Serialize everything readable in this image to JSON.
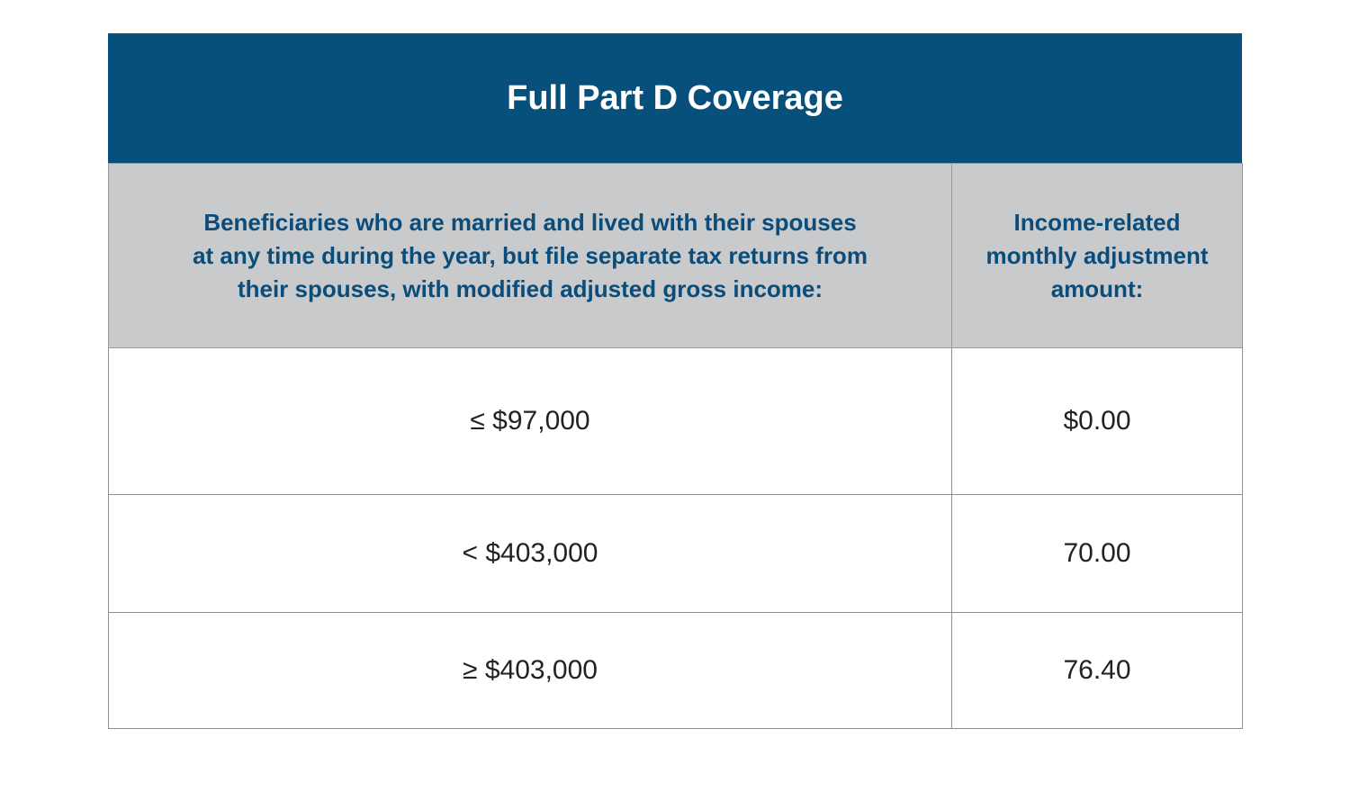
{
  "title": "Full Part D Coverage",
  "header": {
    "col1_lines": [
      "Beneficiaries who are married and lived with their spouses",
      "at any time during the year, but file separate tax returns from",
      "their spouses, with modified adjusted gross income:"
    ],
    "col2_lines": [
      "Income-related",
      "monthly adjustment",
      "amount:"
    ]
  },
  "rows": [
    {
      "income": "≤ $97,000",
      "amount": "$0.00"
    },
    {
      "income": "< $403,000",
      "amount": "70.00"
    },
    {
      "income": "≥ $403,000",
      "amount": "76.40"
    }
  ],
  "colors": {
    "title_bg": "#08507c",
    "header_bg": "#c9cacc",
    "header_text": "#0a4c7a"
  }
}
